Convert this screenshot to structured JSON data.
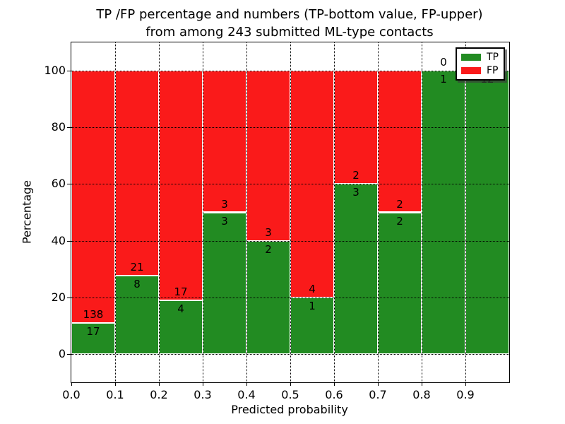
{
  "figure": {
    "title_line1": "TP /FP percentage and numbers (TP-bottom value, FP-upper)",
    "title_line2": "from among 243 submitted ML-type contacts"
  },
  "chart_data": {
    "type": "bar",
    "stacked": true,
    "normalized": "each bar scaled to 100%",
    "title": "TP /FP percentage and numbers (TP-bottom value, FP-upper) from among 243 submitted ML-type contacts",
    "xlabel": "Predicted probability",
    "ylabel": "Percentage",
    "xlim": [
      0.0,
      1.0
    ],
    "ylim": [
      -10,
      110
    ],
    "bar_width": 0.1,
    "grid": true,
    "x_ticks": [
      "0.0",
      "0.1",
      "0.2",
      "0.3",
      "0.4",
      "0.5",
      "0.6",
      "0.7",
      "0.8",
      "0.9"
    ],
    "y_ticks": [
      "0",
      "20",
      "40",
      "60",
      "80",
      "100"
    ],
    "y_tick_values": [
      0,
      20,
      40,
      60,
      80,
      100
    ],
    "categories": [
      "0.0-0.1",
      "0.1-0.2",
      "0.2-0.3",
      "0.3-0.4",
      "0.4-0.5",
      "0.5-0.6",
      "0.6-0.7",
      "0.7-0.8",
      "0.8-0.9",
      "0.9-1.0"
    ],
    "series": [
      {
        "name": "TP",
        "color": "#228b22",
        "values": [
          17,
          8,
          4,
          3,
          2,
          1,
          3,
          2,
          1,
          12
        ]
      },
      {
        "name": "FP",
        "color": "#fa1a1a",
        "values": [
          138,
          21,
          17,
          3,
          3,
          4,
          2,
          2,
          0,
          0
        ]
      }
    ],
    "tp_percent_of_bin": [
      11.0,
      27.6,
      19.0,
      50.0,
      40.0,
      20.0,
      60.0,
      50.0,
      100.0,
      100.0
    ],
    "total_contacts": 243,
    "legend": {
      "position": "upper right",
      "entries": [
        {
          "key": "tp",
          "label": "TP",
          "color": "#228b22"
        },
        {
          "key": "fp",
          "label": "FP",
          "color": "#fa1a1a"
        }
      ]
    }
  }
}
